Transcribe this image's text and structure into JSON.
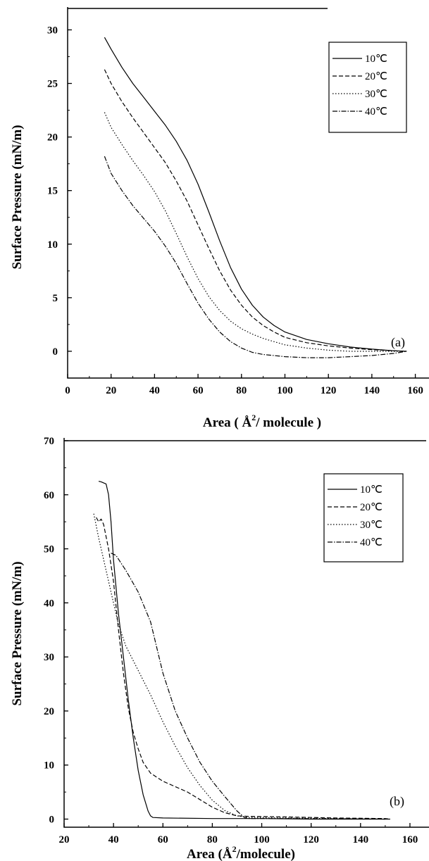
{
  "chart_data": [
    {
      "type": "line",
      "panel_label": "(a)",
      "xlabel_main": "Area ( Å",
      "xlabel_sup": "2",
      "xlabel_tail": "/ molecule )",
      "ylabel": "Surface Pressure (mN/m)",
      "xlim": [
        0,
        165
      ],
      "ylim": [
        -2.5,
        32
      ],
      "xticks": [
        "0",
        "20",
        "40",
        "60",
        "80",
        "100",
        "120",
        "140",
        "160"
      ],
      "yticks": [
        "0",
        "5",
        "10",
        "15",
        "20",
        "25",
        "30"
      ],
      "grid": false,
      "legend_position": "top-right",
      "series": [
        {
          "name": "10℃",
          "dash": "none",
          "points": [
            [
              17,
              29.3
            ],
            [
              20,
              28.2
            ],
            [
              25,
              26.5
            ],
            [
              30,
              25.0
            ],
            [
              35,
              23.7
            ],
            [
              40,
              22.4
            ],
            [
              45,
              21.1
            ],
            [
              50,
              19.6
            ],
            [
              55,
              17.8
            ],
            [
              60,
              15.6
            ],
            [
              65,
              13.0
            ],
            [
              70,
              10.3
            ],
            [
              75,
              7.8
            ],
            [
              80,
              5.8
            ],
            [
              85,
              4.3
            ],
            [
              90,
              3.2
            ],
            [
              95,
              2.4
            ],
            [
              100,
              1.8
            ],
            [
              110,
              1.1
            ],
            [
              120,
              0.7
            ],
            [
              130,
              0.4
            ],
            [
              140,
              0.2
            ],
            [
              150,
              0.05
            ],
            [
              156,
              0.0
            ]
          ]
        },
        {
          "name": "20℃",
          "dash": "6,3",
          "points": [
            [
              17,
              26.3
            ],
            [
              20,
              25.0
            ],
            [
              25,
              23.3
            ],
            [
              30,
              21.8
            ],
            [
              35,
              20.4
            ],
            [
              40,
              19.0
            ],
            [
              45,
              17.6
            ],
            [
              50,
              15.9
            ],
            [
              55,
              14.0
            ],
            [
              60,
              11.8
            ],
            [
              65,
              9.6
            ],
            [
              70,
              7.5
            ],
            [
              75,
              5.7
            ],
            [
              80,
              4.3
            ],
            [
              85,
              3.2
            ],
            [
              90,
              2.4
            ],
            [
              95,
              1.8
            ],
            [
              100,
              1.3
            ],
            [
              110,
              0.8
            ],
            [
              120,
              0.5
            ],
            [
              130,
              0.3
            ],
            [
              140,
              0.15
            ],
            [
              150,
              0.05
            ],
            [
              156,
              0.0
            ]
          ]
        },
        {
          "name": "30℃",
          "dash": "1.5,2.5",
          "points": [
            [
              17,
              22.3
            ],
            [
              20,
              20.9
            ],
            [
              25,
              19.3
            ],
            [
              30,
              17.8
            ],
            [
              35,
              16.4
            ],
            [
              40,
              14.9
            ],
            [
              45,
              13.1
            ],
            [
              50,
              11.0
            ],
            [
              55,
              8.8
            ],
            [
              60,
              6.8
            ],
            [
              65,
              5.1
            ],
            [
              70,
              3.8
            ],
            [
              75,
              2.8
            ],
            [
              80,
              2.1
            ],
            [
              85,
              1.6
            ],
            [
              90,
              1.2
            ],
            [
              95,
              0.9
            ],
            [
              100,
              0.6
            ],
            [
              110,
              0.3
            ],
            [
              120,
              0.1
            ],
            [
              130,
              0.0
            ],
            [
              140,
              0.0
            ],
            [
              150,
              0.0
            ],
            [
              156,
              0.0
            ]
          ]
        },
        {
          "name": "40℃",
          "dash": "7,2,1.5,2",
          "points": [
            [
              17,
              18.2
            ],
            [
              20,
              16.6
            ],
            [
              25,
              15.0
            ],
            [
              30,
              13.6
            ],
            [
              35,
              12.4
            ],
            [
              40,
              11.2
            ],
            [
              45,
              9.8
            ],
            [
              50,
              8.2
            ],
            [
              55,
              6.3
            ],
            [
              60,
              4.5
            ],
            [
              65,
              3.0
            ],
            [
              70,
              1.8
            ],
            [
              75,
              0.9
            ],
            [
              80,
              0.3
            ],
            [
              85,
              -0.1
            ],
            [
              90,
              -0.3
            ],
            [
              100,
              -0.5
            ],
            [
              110,
              -0.6
            ],
            [
              120,
              -0.6
            ],
            [
              130,
              -0.5
            ],
            [
              140,
              -0.4
            ],
            [
              150,
              -0.2
            ],
            [
              156,
              0.0
            ]
          ]
        }
      ]
    },
    {
      "type": "line",
      "panel_label": "(b)",
      "xlabel_main": "Area (Å",
      "xlabel_sup": "2",
      "xlabel_tail": "/molecule)",
      "ylabel": "Surface Pressure (mN/m)",
      "xlim": [
        20,
        166
      ],
      "ylim": [
        -1.5,
        70
      ],
      "xticks": [
        "20",
        "40",
        "60",
        "80",
        "100",
        "120",
        "140",
        "160"
      ],
      "yticks": [
        "0",
        "10",
        "20",
        "30",
        "40",
        "50",
        "60",
        "70"
      ],
      "grid": false,
      "legend_position": "top-right",
      "series": [
        {
          "name": "10℃",
          "dash": "none",
          "points": [
            [
              34,
              62.5
            ],
            [
              35,
              62.4
            ],
            [
              37,
              62.0
            ],
            [
              38,
              60.0
            ],
            [
              39,
              55.0
            ],
            [
              40,
              48.0
            ],
            [
              42,
              38.0
            ],
            [
              44,
              30.0
            ],
            [
              46,
              22.0
            ],
            [
              48,
              15.0
            ],
            [
              50,
              9.0
            ],
            [
              52,
              4.5
            ],
            [
              54,
              1.5
            ],
            [
              55,
              0.6
            ],
            [
              56,
              0.3
            ],
            [
              60,
              0.2
            ],
            [
              80,
              0.1
            ],
            [
              100,
              0.1
            ],
            [
              120,
              0.0
            ],
            [
              140,
              0.0
            ],
            [
              152,
              0.0
            ]
          ]
        },
        {
          "name": "20℃",
          "dash": "6,3",
          "points": [
            [
              33,
              55.8
            ],
            [
              34,
              55.0
            ],
            [
              35,
              55.5
            ],
            [
              36,
              54.5
            ],
            [
              38,
              50.0
            ],
            [
              40,
              44.0
            ],
            [
              42,
              35.0
            ],
            [
              44,
              27.0
            ],
            [
              46,
              20.5
            ],
            [
              48,
              16.0
            ],
            [
              50,
              13.0
            ],
            [
              52,
              10.5
            ],
            [
              55,
              8.5
            ],
            [
              60,
              7.0
            ],
            [
              65,
              6.0
            ],
            [
              70,
              5.0
            ],
            [
              75,
              3.6
            ],
            [
              80,
              2.2
            ],
            [
              85,
              1.2
            ],
            [
              90,
              0.6
            ],
            [
              95,
              0.5
            ],
            [
              110,
              0.4
            ],
            [
              130,
              0.2
            ],
            [
              150,
              0.1
            ],
            [
              152,
              0.0
            ]
          ]
        },
        {
          "name": "30℃",
          "dash": "1.5,2.5",
          "points": [
            [
              32,
              56.5
            ],
            [
              34,
              52.0
            ],
            [
              36,
              48.0
            ],
            [
              38,
              44.0
            ],
            [
              40,
              40.0
            ],
            [
              42,
              36.0
            ],
            [
              45,
              32.0
            ],
            [
              50,
              27.5
            ],
            [
              55,
              23.0
            ],
            [
              60,
              18.0
            ],
            [
              65,
              13.5
            ],
            [
              70,
              9.5
            ],
            [
              75,
              6.2
            ],
            [
              80,
              3.5
            ],
            [
              85,
              1.6
            ],
            [
              90,
              0.6
            ],
            [
              95,
              0.3
            ],
            [
              110,
              0.2
            ],
            [
              130,
              0.1
            ],
            [
              150,
              0.0
            ]
          ]
        },
        {
          "name": "40℃",
          "dash": "7,2,1.5,2",
          "points": [
            [
              39,
              49.2
            ],
            [
              41,
              48.8
            ],
            [
              45,
              46.0
            ],
            [
              50,
              42.0
            ],
            [
              55,
              36.5
            ],
            [
              60,
              27.0
            ],
            [
              65,
              20.0
            ],
            [
              70,
              15.0
            ],
            [
              75,
              10.5
            ],
            [
              80,
              7.0
            ],
            [
              85,
              4.2
            ],
            [
              90,
              1.5
            ],
            [
              93,
              0.3
            ],
            [
              95,
              0.1
            ],
            [
              110,
              0.1
            ],
            [
              130,
              0.05
            ],
            [
              150,
              0.0
            ]
          ]
        }
      ]
    }
  ]
}
